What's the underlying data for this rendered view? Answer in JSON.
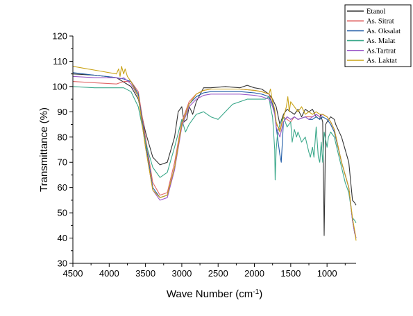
{
  "chart_data": {
    "type": "line",
    "xlabel": "Wave Number (cm",
    "xlabel_sup": "-1",
    "xlabel_suffix": ")",
    "ylabel": "Transmittance (%)",
    "xlim": [
      4500,
      600
    ],
    "ylim": [
      30,
      120
    ],
    "x_reversed": true,
    "x_ticks": [
      4500,
      4000,
      3500,
      3000,
      2500,
      2000,
      1500,
      1000
    ],
    "y_ticks": [
      30,
      40,
      50,
      60,
      70,
      80,
      90,
      100,
      110,
      120
    ],
    "grid": false,
    "legend_position": "top-right",
    "series": [
      {
        "name": "Etanol",
        "color": "#333333",
        "x": [
          4500,
          4200,
          3900,
          3700,
          3600,
          3500,
          3400,
          3300,
          3200,
          3100,
          3050,
          3000,
          2970,
          2930,
          2900,
          2880,
          2850,
          2800,
          2700,
          2600,
          2400,
          2200,
          2100,
          2000,
          1900,
          1800,
          1750,
          1700,
          1650,
          1600,
          1550,
          1500,
          1450,
          1400,
          1350,
          1300,
          1250,
          1200,
          1150,
          1100,
          1090,
          1060,
          1047,
          1040,
          1030,
          1020,
          1000,
          950,
          900,
          880,
          800,
          700,
          650,
          620,
          600
        ],
        "y": [
          105,
          104.5,
          103.5,
          100,
          95,
          82,
          72,
          69,
          70,
          80,
          90,
          92,
          86,
          87,
          92,
          91,
          89,
          94,
          99.5,
          99.5,
          100,
          99.5,
          100.5,
          99.5,
          99,
          97,
          95,
          92,
          85,
          89,
          91,
          90,
          89,
          91,
          88,
          91,
          90,
          91,
          88,
          87,
          89,
          86,
          60,
          41,
          60,
          85,
          86,
          88,
          87,
          85,
          80,
          70,
          55,
          54,
          53
        ]
      },
      {
        "name": "As. Sitrat",
        "color": "#e06666",
        "x": [
          4500,
          4200,
          3900,
          3800,
          3700,
          3600,
          3500,
          3400,
          3300,
          3200,
          3100,
          3000,
          2900,
          2800,
          2700,
          2600,
          2400,
          2200,
          2000,
          1900,
          1800,
          1750,
          1720,
          1700,
          1650,
          1600,
          1550,
          1500,
          1450,
          1400,
          1300,
          1250,
          1200,
          1150,
          1100,
          1060,
          1000,
          950,
          900,
          800,
          700,
          650,
          620,
          600
        ],
        "y": [
          102,
          101.5,
          101,
          102,
          102,
          98,
          80,
          62,
          57,
          58,
          70,
          86,
          94,
          97,
          98.5,
          99,
          99,
          99,
          98.5,
          98,
          97,
          93,
          90,
          85,
          83,
          88,
          87,
          86,
          88,
          87,
          88,
          88,
          88,
          89,
          88,
          89,
          88,
          86,
          83,
          70,
          60,
          47,
          43,
          40
        ]
      },
      {
        "name": "As. Oksalat",
        "color": "#1f5ba6",
        "x": [
          4500,
          4200,
          3900,
          3800,
          3700,
          3600,
          3500,
          3400,
          3300,
          3200,
          3100,
          3000,
          2900,
          2800,
          2700,
          2600,
          2400,
          2200,
          2000,
          1900,
          1800,
          1750,
          1720,
          1700,
          1650,
          1630,
          1600,
          1550,
          1500,
          1450,
          1400,
          1300,
          1250,
          1200,
          1150,
          1100,
          1060,
          1000,
          950,
          900,
          800,
          700,
          650,
          620,
          600
        ],
        "y": [
          105.5,
          104.5,
          103.5,
          103,
          102,
          97,
          78,
          60,
          56,
          57,
          68,
          85,
          93,
          96,
          97.5,
          98,
          98,
          98,
          97.5,
          97,
          96,
          93,
          90,
          84,
          73,
          70,
          86,
          88,
          87,
          88,
          87,
          88,
          87,
          87,
          88,
          87,
          88,
          87,
          85,
          82,
          70,
          60,
          47,
          42,
          40
        ]
      },
      {
        "name": "As. Malat",
        "color": "#3aa88a",
        "x": [
          4500,
          4200,
          3900,
          3800,
          3700,
          3600,
          3500,
          3400,
          3300,
          3200,
          3100,
          3000,
          2950,
          2900,
          2800,
          2700,
          2600,
          2500,
          2400,
          2300,
          2200,
          2100,
          2000,
          1900,
          1850,
          1800,
          1780,
          1750,
          1720,
          1715,
          1700,
          1680,
          1650,
          1600,
          1550,
          1500,
          1480,
          1450,
          1420,
          1400,
          1350,
          1300,
          1250,
          1230,
          1200,
          1180,
          1150,
          1120,
          1100,
          1080,
          1060,
          1040,
          1000,
          980,
          950,
          900,
          850,
          800,
          750,
          700,
          650,
          620,
          600
        ],
        "y": [
          100,
          99.5,
          99.5,
          99.5,
          98,
          92,
          78,
          68,
          64,
          66,
          76,
          87,
          82,
          85,
          89,
          90,
          88,
          87,
          90,
          93,
          94,
          95,
          95,
          95,
          95,
          96,
          92,
          88,
          75,
          63,
          75,
          82,
          85,
          88,
          84,
          86,
          78,
          83,
          80,
          82,
          78,
          80,
          74,
          72,
          76,
          72,
          84,
          72,
          70,
          78,
          70,
          82,
          76,
          80,
          82,
          80,
          74,
          68,
          62,
          58,
          48,
          47,
          46
        ]
      },
      {
        "name": "As.Tartrat",
        "color": "#9b59c9",
        "x": [
          4500,
          4200,
          3900,
          3850,
          3800,
          3700,
          3600,
          3500,
          3400,
          3300,
          3200,
          3100,
          3000,
          2900,
          2800,
          2700,
          2600,
          2400,
          2200,
          2000,
          1900,
          1800,
          1750,
          1720,
          1700,
          1650,
          1600,
          1550,
          1500,
          1450,
          1400,
          1300,
          1250,
          1200,
          1150,
          1100,
          1060,
          1000,
          950,
          900,
          800,
          700,
          650,
          620,
          600
        ],
        "y": [
          104,
          103.5,
          103.5,
          103,
          103.5,
          101,
          96,
          76,
          59,
          55,
          56,
          67,
          84,
          92,
          95,
          96.5,
          97,
          97,
          97,
          96.5,
          96,
          95,
          92,
          89,
          84,
          80,
          86,
          88,
          87,
          88,
          87,
          88,
          87,
          88,
          89,
          88,
          89,
          88,
          86,
          83,
          70,
          60,
          47,
          42,
          40
        ]
      },
      {
        "name": "As. Laktat",
        "color": "#c9a317",
        "x": [
          4500,
          4300,
          4100,
          3900,
          3870,
          3850,
          3830,
          3800,
          3780,
          3750,
          3700,
          3600,
          3500,
          3400,
          3300,
          3200,
          3100,
          3000,
          2900,
          2800,
          2700,
          2600,
          2400,
          2200,
          2000,
          1900,
          1800,
          1780,
          1750,
          1720,
          1700,
          1650,
          1600,
          1560,
          1540,
          1520,
          1500,
          1450,
          1400,
          1350,
          1300,
          1250,
          1200,
          1150,
          1100,
          1060,
          1000,
          950,
          900,
          800,
          700,
          650,
          620,
          600
        ],
        "y": [
          108,
          107,
          106,
          105,
          107,
          104,
          108,
          105,
          107,
          104,
          102,
          96,
          76,
          59,
          56,
          57,
          68,
          85,
          93,
          97,
          98.5,
          99,
          99,
          99,
          98.5,
          98,
          97,
          99,
          94,
          91,
          86,
          82,
          88,
          92,
          96,
          90,
          94,
          92,
          90,
          92,
          89,
          90,
          89,
          90,
          89,
          89,
          88,
          86,
          83,
          70,
          60,
          48,
          43,
          39
        ]
      }
    ]
  }
}
